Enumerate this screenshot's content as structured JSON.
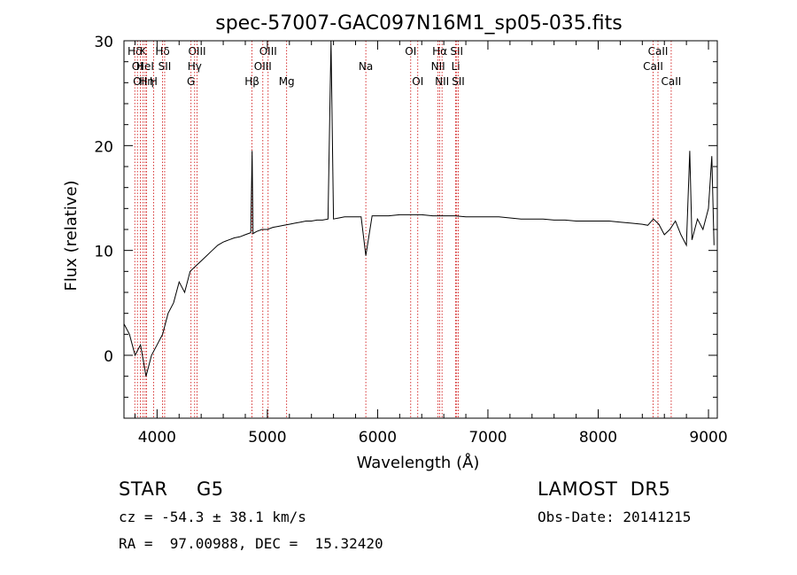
{
  "chart_data": {
    "type": "line",
    "title": "spec-57007-GAC097N16M1_sp05-035.fits",
    "xlabel": "Wavelength (Å)",
    "ylabel": "Flux (relative)",
    "xlim": [
      3700,
      9080
    ],
    "ylim": [
      -6,
      30
    ],
    "xticks": [
      4000,
      5000,
      6000,
      7000,
      8000,
      9000
    ],
    "xtick_labels": [
      "4000",
      "5000",
      "6000",
      "7000",
      "8000",
      "9000"
    ],
    "yticks": [
      0,
      10,
      20,
      30
    ],
    "ytick_labels": [
      "0",
      "10",
      "20",
      "30"
    ],
    "grid": false,
    "line_color": "#000000",
    "marker_color": "#cc0000",
    "spectrum": {
      "x": [
        3700,
        3750,
        3800,
        3850,
        3900,
        3950,
        4000,
        4050,
        4100,
        4150,
        4200,
        4250,
        4300,
        4350,
        4400,
        4450,
        4500,
        4550,
        4600,
        4650,
        4700,
        4750,
        4800,
        4850,
        4862,
        4870,
        4900,
        4950,
        5000,
        5050,
        5100,
        5150,
        5200,
        5250,
        5300,
        5350,
        5400,
        5450,
        5500,
        5550,
        5577,
        5600,
        5650,
        5700,
        5750,
        5800,
        5850,
        5893,
        5950,
        6000,
        6100,
        6200,
        6300,
        6400,
        6500,
        6600,
        6700,
        6800,
        6900,
        7000,
        7100,
        7200,
        7300,
        7400,
        7500,
        7600,
        7700,
        7800,
        7900,
        8000,
        8100,
        8200,
        8300,
        8400,
        8450,
        8500,
        8550,
        8600,
        8650,
        8700,
        8750,
        8800,
        8830,
        8850,
        8900,
        8950,
        9000,
        9030,
        9050
      ],
      "y": [
        3.0,
        2.0,
        0.0,
        1.0,
        -2.0,
        0.0,
        1.0,
        2.0,
        4.0,
        5.0,
        7.0,
        6.0,
        8.0,
        8.5,
        9.0,
        9.5,
        10.0,
        10.5,
        10.8,
        11.0,
        11.2,
        11.3,
        11.5,
        11.7,
        19.5,
        11.6,
        11.8,
        12.0,
        12.0,
        12.2,
        12.3,
        12.4,
        12.5,
        12.6,
        12.7,
        12.8,
        12.8,
        12.9,
        12.9,
        13.0,
        30.0,
        13.0,
        13.1,
        13.2,
        13.2,
        13.2,
        13.2,
        9.5,
        13.3,
        13.3,
        13.3,
        13.4,
        13.4,
        13.4,
        13.3,
        13.3,
        13.3,
        13.2,
        13.2,
        13.2,
        13.2,
        13.1,
        13.0,
        13.0,
        13.0,
        12.9,
        12.9,
        12.8,
        12.8,
        12.8,
        12.8,
        12.7,
        12.6,
        12.5,
        12.4,
        13.0,
        12.5,
        11.5,
        12.0,
        12.8,
        11.5,
        10.5,
        19.5,
        11.0,
        13.0,
        12.0,
        14.0,
        19.0,
        10.5
      ]
    },
    "lines": [
      {
        "label": "Hδ",
        "w": 3798,
        "row": 0
      },
      {
        "label": "OI",
        "w": 3822,
        "row": 1
      },
      {
        "label": "OII",
        "w": 3848,
        "row": 2
      },
      {
        "label": "K",
        "w": 3874,
        "row": 0
      },
      {
        "label": "HeI",
        "w": 3892,
        "row": 1
      },
      {
        "label": "Hη",
        "w": 3905,
        "row": 2
      },
      {
        "label": "H",
        "w": 3968,
        "row": 2
      },
      {
        "label": "Hδ",
        "w": 4050,
        "row": 0
      },
      {
        "label": "SII",
        "w": 4069,
        "row": 1
      },
      {
        "label": "OIII",
        "w": 4363,
        "row": 0
      },
      {
        "label": "Hγ",
        "w": 4341,
        "row": 1
      },
      {
        "label": "G",
        "w": 4308,
        "row": 2
      },
      {
        "label": "Hβ",
        "w": 4861,
        "row": 2
      },
      {
        "label": "OIII",
        "w": 5007,
        "row": 0
      },
      {
        "label": "OIII",
        "w": 4959,
        "row": 1
      },
      {
        "label": "Mg",
        "w": 5175,
        "row": 2
      },
      {
        "label": "Na",
        "w": 5893,
        "row": 1
      },
      {
        "label": "OI",
        "w": 6300,
        "row": 0
      },
      {
        "label": "OI",
        "w": 6364,
        "row": 2
      },
      {
        "label": "Hα",
        "w": 6563,
        "row": 0
      },
      {
        "label": "NII",
        "w": 6548,
        "row": 1
      },
      {
        "label": "NII",
        "w": 6584,
        "row": 2
      },
      {
        "label": "SII",
        "w": 6717,
        "row": 0
      },
      {
        "label": "Li",
        "w": 6708,
        "row": 1
      },
      {
        "label": "SII",
        "w": 6731,
        "row": 2
      },
      {
        "label": "CaII",
        "w": 8542,
        "row": 0
      },
      {
        "label": "CaII",
        "w": 8498,
        "row": 1
      },
      {
        "label": "CaII",
        "w": 8662,
        "row": 2
      }
    ]
  },
  "info": {
    "object_class": "STAR",
    "subclass": "G5",
    "survey": "LAMOST  DR5",
    "cz": "cz = -54.3 ± 38.1 km/s",
    "obs_date": "Obs-Date: 20141215",
    "coords": "RA =  97.00988, DEC =  15.32420"
  }
}
